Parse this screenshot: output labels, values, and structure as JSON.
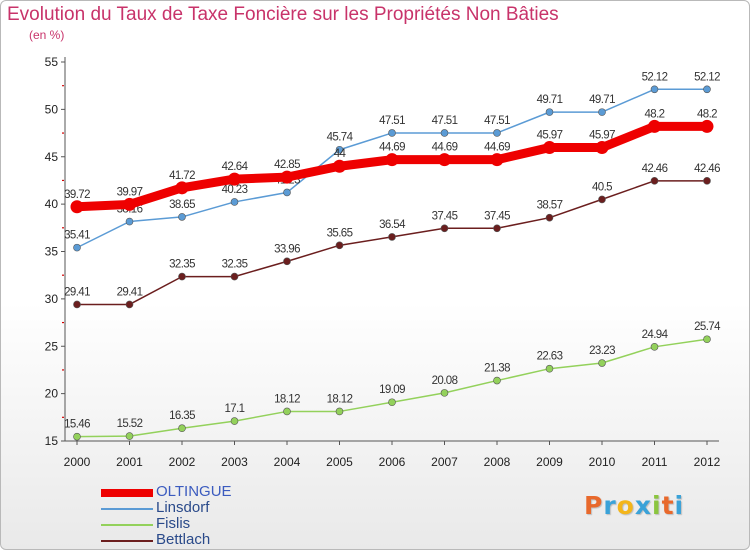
{
  "title": "Evolution du Taux de Taxe Foncière sur les Propriétés Non Bâties",
  "subtitle": "(en %)",
  "logo": {
    "letters": [
      "P",
      "r",
      "o",
      "x",
      "i",
      "t",
      "i"
    ],
    "colors": [
      "#e8692c",
      "#3aa2d8",
      "#f3b51a",
      "#3aa2d8",
      "#8bc53f",
      "#e8692c",
      "#3aa2d8"
    ]
  },
  "chart_data": {
    "type": "line",
    "x": [
      "2000",
      "2001",
      "2002",
      "2003",
      "2004",
      "2005",
      "2006",
      "2007",
      "2008",
      "2009",
      "2010",
      "2011",
      "2012"
    ],
    "ylim": [
      15,
      55
    ],
    "yticks": [
      "15",
      "20",
      "25",
      "30",
      "35",
      "40",
      "45",
      "50",
      "55"
    ],
    "grid": false,
    "legend_position": "bottom-left",
    "series": [
      {
        "name": "Bettlach",
        "color": "#6b1e1e",
        "emphasis": false,
        "values": [
          29.41,
          29.41,
          32.35,
          32.35,
          33.96,
          35.65,
          36.54,
          37.45,
          37.45,
          38.57,
          40.5,
          42.46,
          42.46
        ],
        "labels": [
          "29.41",
          "29.41",
          "32.35",
          "32.35",
          "33.96",
          "35.65",
          "36.54",
          "37.45",
          "37.45",
          "38.57",
          "40.5",
          "42.46",
          "42.46"
        ]
      },
      {
        "name": "Fislis",
        "color": "#93d15b",
        "emphasis": false,
        "values": [
          15.46,
          15.52,
          16.35,
          17.1,
          18.12,
          18.12,
          19.09,
          20.08,
          21.38,
          22.63,
          23.23,
          24.94,
          25.74
        ],
        "labels": [
          "15.46",
          "15.52",
          "16.35",
          "17.1",
          "18.12",
          "18.12",
          "19.09",
          "20.08",
          "21.38",
          "22.63",
          "23.23",
          "24.94",
          "25.74"
        ]
      },
      {
        "name": "Linsdorf",
        "color": "#5b9bd5",
        "emphasis": false,
        "values": [
          35.41,
          38.16,
          38.65,
          40.23,
          41.23,
          45.74,
          47.51,
          47.51,
          47.51,
          49.71,
          49.71,
          52.12,
          52.12
        ],
        "labels": [
          "35.41",
          "38.16",
          "38.65",
          "40.23",
          "41.23",
          "45.74",
          "47.51",
          "47.51",
          "47.51",
          "49.71",
          "49.71",
          "52.12",
          "52.12"
        ]
      },
      {
        "name": "OLTINGUE",
        "color": "#ee0000",
        "emphasis": true,
        "values": [
          39.72,
          39.97,
          41.72,
          42.64,
          42.85,
          44.0,
          44.69,
          44.69,
          44.69,
          45.97,
          45.97,
          48.2,
          48.2
        ],
        "labels": [
          "39.72",
          "39.97",
          "41.72",
          "42.64",
          "42.85",
          "44",
          "44.69",
          "44.69",
          "44.69",
          "45.97",
          "45.97",
          "48.2",
          "48.2"
        ]
      }
    ],
    "legend_order": [
      "OLTINGUE",
      "Linsdorf",
      "Fislis",
      "Bettlach"
    ]
  }
}
